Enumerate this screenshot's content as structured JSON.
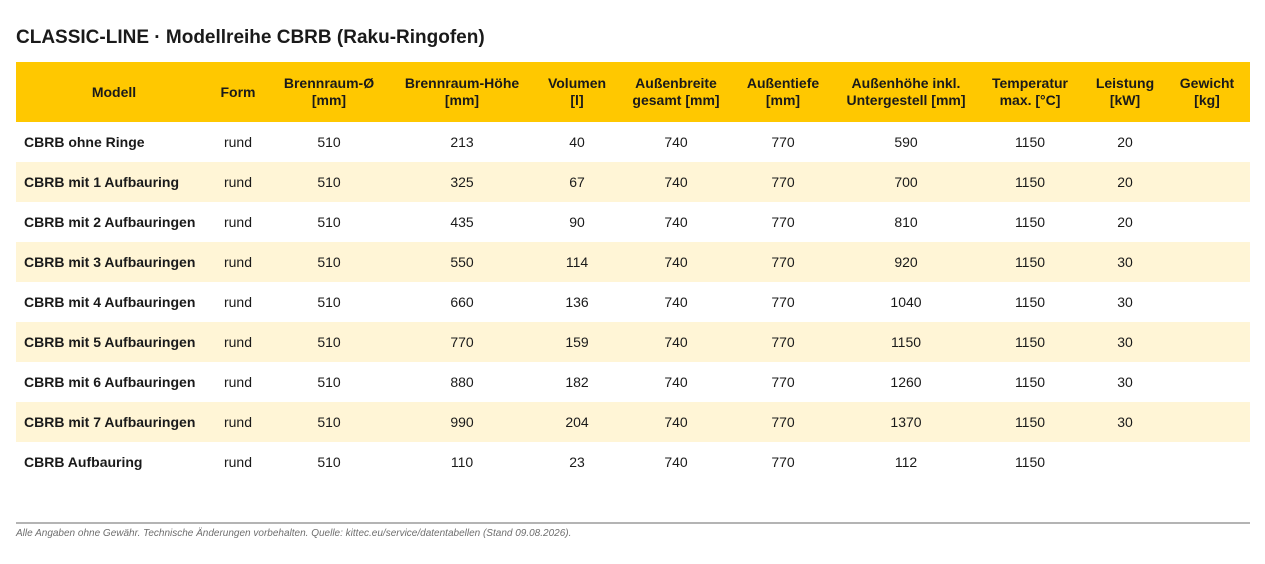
{
  "title": "CLASSIC-LINE · Modellreihe CBRB (Raku-Ringofen)",
  "columns": [
    "Modell",
    "Form",
    "Brennraum-Ø\n[mm]",
    "Brennraum-Höhe\n[mm]",
    "Volumen\n[l]",
    "Außenbreite\ngesamt [mm]",
    "Außentiefe\n[mm]",
    "Außenhöhe inkl.\nUntergestell [mm]",
    "Temperatur\nmax. [°C]",
    "Leistung\n[kW]",
    "Gewicht\n[kg]"
  ],
  "rows": [
    [
      "CBRB ohne Ringe",
      "rund",
      "510",
      "213",
      "40",
      "740",
      "770",
      "590",
      "1150",
      "20",
      ""
    ],
    [
      "CBRB mit 1 Aufbauring",
      "rund",
      "510",
      "325",
      "67",
      "740",
      "770",
      "700",
      "1150",
      "20",
      ""
    ],
    [
      "CBRB mit 2 Aufbauringen",
      "rund",
      "510",
      "435",
      "90",
      "740",
      "770",
      "810",
      "1150",
      "20",
      ""
    ],
    [
      "CBRB mit 3 Aufbauringen",
      "rund",
      "510",
      "550",
      "114",
      "740",
      "770",
      "920",
      "1150",
      "30",
      ""
    ],
    [
      "CBRB mit 4 Aufbauringen",
      "rund",
      "510",
      "660",
      "136",
      "740",
      "770",
      "1040",
      "1150",
      "30",
      ""
    ],
    [
      "CBRB mit 5 Aufbauringen",
      "rund",
      "510",
      "770",
      "159",
      "740",
      "770",
      "1150",
      "1150",
      "30",
      ""
    ],
    [
      "CBRB mit 6 Aufbauringen",
      "rund",
      "510",
      "880",
      "182",
      "740",
      "770",
      "1260",
      "1150",
      "30",
      ""
    ],
    [
      "CBRB mit 7 Aufbauringen",
      "rund",
      "510",
      "990",
      "204",
      "740",
      "770",
      "1370",
      "1150",
      "30",
      ""
    ],
    [
      "CBRB Aufbauring",
      "rund",
      "510",
      "110",
      "23",
      "740",
      "770",
      "112",
      "1150",
      "",
      ""
    ]
  ],
  "footnote": "Alle Angaben ohne Gewähr. Technische Änderungen vorbehalten. Quelle: kittec.eu/service/datentabellen (Stand 09.08.2026).",
  "colors": {
    "header_bg": "#ffc800",
    "row_alt_bg": "#fff5d6"
  }
}
